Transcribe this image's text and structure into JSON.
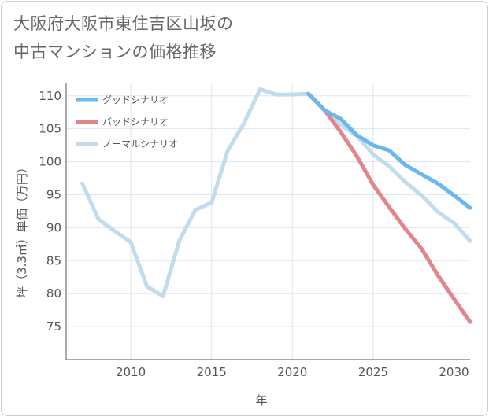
{
  "title_line1": "大阪府大阪市東住吉区山坂の",
  "title_line2": "中古マンションの価格推移",
  "chart_data": {
    "type": "line",
    "xlabel": "年",
    "ylabel": "坪（3.3㎡）単価（万円）",
    "xlim": [
      2006,
      2031
    ],
    "ylim": [
      70,
      112
    ],
    "xticks": [
      2010,
      2015,
      2020,
      2025,
      2030
    ],
    "yticks": [
      75,
      80,
      85,
      90,
      95,
      100,
      105,
      110
    ],
    "grid": true,
    "legend_placement": "top-left",
    "series": [
      {
        "name": "グッドシナリオ",
        "color": "#6ab8ee",
        "x": [
          2021,
          2022,
          2023,
          2024,
          2025,
          2026,
          2027,
          2028,
          2029,
          2030,
          2031
        ],
        "y": [
          110.3,
          107.8,
          106.5,
          104.0,
          102.5,
          101.7,
          99.5,
          98.1,
          96.7,
          94.9,
          93.0
        ]
      },
      {
        "name": "バッドシナリオ",
        "color": "#e0868c",
        "x": [
          2021,
          2022,
          2023,
          2024,
          2025,
          2026,
          2027,
          2028,
          2029,
          2030,
          2031
        ],
        "y": [
          110.3,
          107.8,
          104.5,
          100.8,
          96.5,
          93.1,
          89.8,
          86.8,
          82.8,
          79.2,
          75.7
        ]
      },
      {
        "name": "ノーマルシナリオ",
        "color": "#c2dceb",
        "x": [
          2007,
          2008,
          2009,
          2010,
          2011,
          2012,
          2013,
          2014,
          2015,
          2016,
          2017,
          2018,
          2019,
          2020,
          2021,
          2022,
          2023,
          2024,
          2025,
          2026,
          2027,
          2028,
          2029,
          2030,
          2031
        ],
        "y": [
          96.7,
          91.3,
          89.5,
          87.8,
          81.1,
          79.6,
          88.0,
          92.7,
          93.8,
          101.7,
          105.8,
          111.0,
          110.2,
          110.2,
          110.3,
          107.8,
          105.6,
          103.9,
          101.1,
          99.3,
          96.9,
          94.9,
          92.4,
          90.7,
          88.0
        ]
      }
    ]
  }
}
